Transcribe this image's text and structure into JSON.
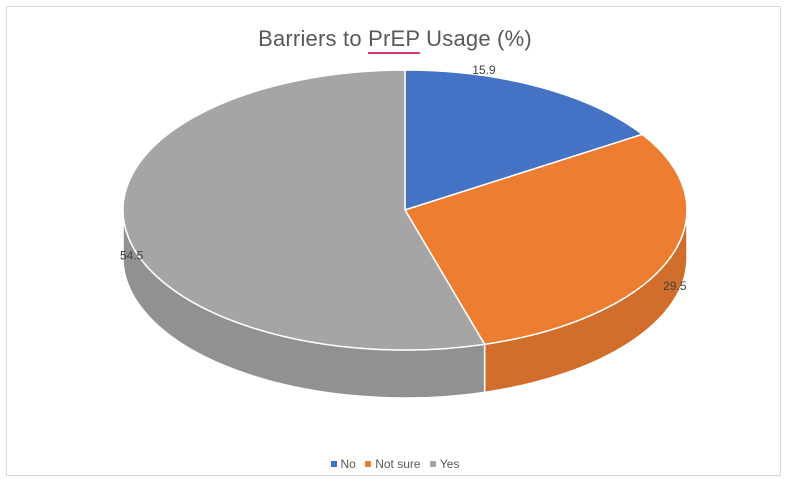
{
  "chart_data": {
    "type": "pie",
    "title_parts": [
      "Barriers to ",
      "PrEP",
      " Usage (%)"
    ],
    "categories": [
      "No",
      "Not sure",
      "Yes"
    ],
    "values": [
      15.9,
      29.5,
      54.5
    ],
    "value_labels": [
      "15.9",
      "29.5",
      "54.5"
    ],
    "colors": [
      "#4472c4",
      "#ed7d31",
      "#a5a5a5"
    ],
    "legend_position": "bottom",
    "style": "3d-pie"
  }
}
